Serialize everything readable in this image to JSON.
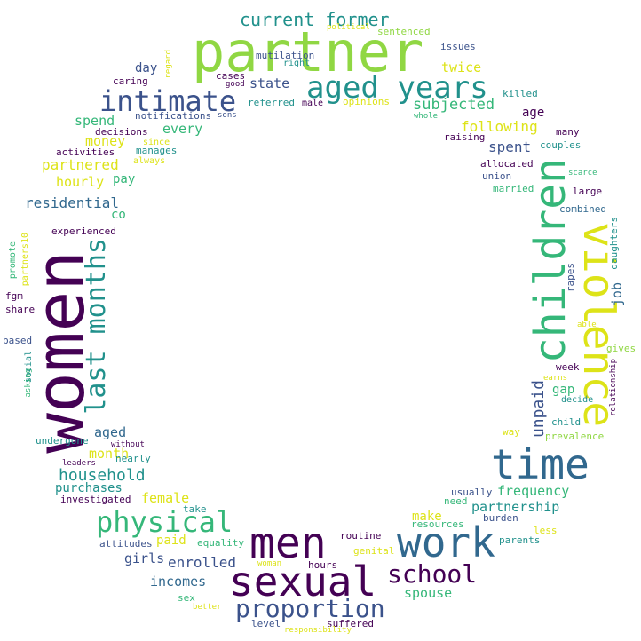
{
  "word_cloud": {
    "palette": {
      "dark_purple": "#440154",
      "indigo": "#3b528b",
      "blue": "#31688e",
      "teal": "#21918c",
      "green": "#35b779",
      "lime": "#90d743",
      "yellow": "#dde318"
    },
    "words": [
      "partner",
      "women",
      "children",
      "violence",
      "men",
      "sexual",
      "time",
      "work",
      "aged years",
      "intimate",
      "last months",
      "physical",
      "proportion",
      "school",
      "current former",
      "unpaid",
      "household",
      "subjected",
      "partnered",
      "spent",
      "following",
      "residential",
      "state",
      "twice",
      "partnership",
      "frequency",
      "spouse",
      "enrolled",
      "incomes",
      "girls",
      "female",
      "job",
      "every",
      "money",
      "spend",
      "day",
      "month",
      "aged",
      "hourly",
      "purchases",
      "paid",
      "make",
      "gap",
      "age",
      "pay",
      "co",
      "week",
      "issues",
      "killed",
      "raising",
      "allocated",
      "union",
      "married",
      "large",
      "combined",
      "daughters",
      "rapes",
      "relationship",
      "gives",
      "able",
      "earns",
      "decide",
      "child",
      "prevalence",
      "way",
      "less",
      "parents",
      "burden",
      "resources",
      "need",
      "usually",
      "routine",
      "genital",
      "suffered",
      "responsibility",
      "level",
      "better",
      "sex",
      "woman",
      "hours",
      "equality",
      "take",
      "attitudes",
      "investigated",
      "nearly",
      "without",
      "leaders",
      "undergone",
      "asking",
      "social",
      "based",
      "share",
      "fgm",
      "promote",
      "partners10",
      "experienced",
      "activities",
      "decisions",
      "caring",
      "cases",
      "good",
      "right",
      "male",
      "opinions",
      "whole",
      "referred",
      "notifications",
      "sons",
      "manages",
      "always",
      "since",
      "regard",
      "mutilation",
      "political",
      "sentenced",
      "many",
      "couples",
      "scarce",
      "opinions"
    ]
  }
}
